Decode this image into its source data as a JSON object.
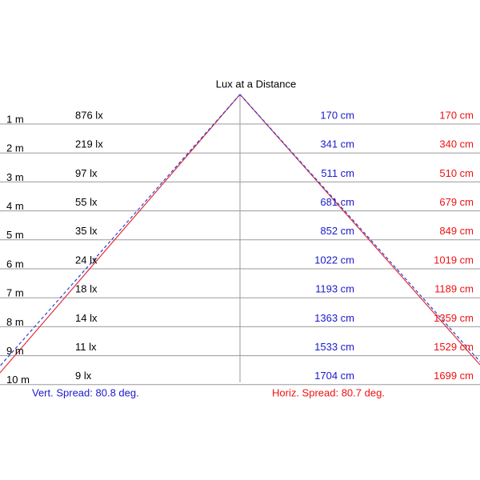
{
  "title": "Lux at a Distance",
  "rows": [
    {
      "distance": "1 m",
      "lux": "876 lx",
      "vertical": "170 cm",
      "horizontal": "170 cm"
    },
    {
      "distance": "2 m",
      "lux": "219 lx",
      "vertical": "341 cm",
      "horizontal": "340 cm"
    },
    {
      "distance": "3 m",
      "lux": "97 lx",
      "vertical": "511 cm",
      "horizontal": "510 cm"
    },
    {
      "distance": "4 m",
      "lux": "55 lx",
      "vertical": "681 cm",
      "horizontal": "679 cm"
    },
    {
      "distance": "5 m",
      "lux": "35 lx",
      "vertical": "852 cm",
      "horizontal": "849 cm"
    },
    {
      "distance": "6 m",
      "lux": "24 lx",
      "vertical": "1022 cm",
      "horizontal": "1019 cm"
    },
    {
      "distance": "7 m",
      "lux": "18 lx",
      "vertical": "1193 cm",
      "horizontal": "1189 cm"
    },
    {
      "distance": "8 m",
      "lux": "14 lx",
      "vertical": "1363 cm",
      "horizontal": "1359 cm"
    },
    {
      "distance": "9 m",
      "lux": "11 lx",
      "vertical": "1533 cm",
      "horizontal": "1529 cm"
    },
    {
      "distance": "10 m",
      "lux": "9 lx",
      "vertical": "1704 cm",
      "horizontal": "1699 cm"
    }
  ],
  "vertical_spread": "Vert. Spread: 80.8 deg.",
  "horizontal_spread": "Horiz. Spread: 80.7 deg."
}
